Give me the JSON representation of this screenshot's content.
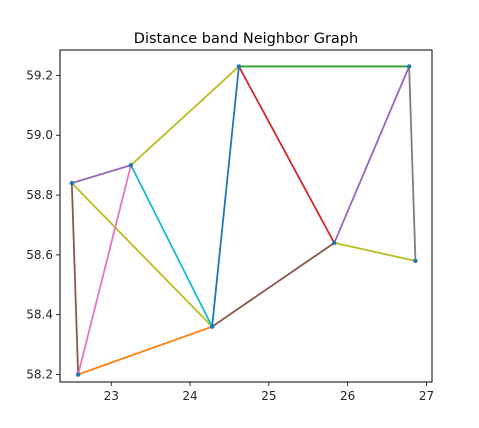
{
  "chart_data": {
    "type": "line",
    "title": "Distance band Neighbor Graph",
    "xlabel": "",
    "ylabel": "",
    "xlim": [
      22.35,
      27.07
    ],
    "ylim": [
      58.175,
      59.285
    ],
    "xticks": [
      23,
      24,
      25,
      26,
      27
    ],
    "yticks": [
      58.2,
      58.4,
      58.6,
      58.8,
      59.0,
      59.2
    ],
    "grid": false,
    "legend": "none",
    "nodes": [
      {
        "id": "A",
        "x": 22.5,
        "y": 58.84
      },
      {
        "id": "B",
        "x": 23.25,
        "y": 58.9
      },
      {
        "id": "C",
        "x": 22.58,
        "y": 58.2
      },
      {
        "id": "D",
        "x": 24.28,
        "y": 58.36
      },
      {
        "id": "E",
        "x": 24.62,
        "y": 59.23
      },
      {
        "id": "F",
        "x": 25.83,
        "y": 58.64
      },
      {
        "id": "G",
        "x": 26.78,
        "y": 59.23
      },
      {
        "id": "H",
        "x": 26.86,
        "y": 58.58
      }
    ],
    "edges": [
      {
        "from": "A",
        "to": "B",
        "color": "#9467bd"
      },
      {
        "from": "A",
        "to": "C",
        "color": "#8c564b"
      },
      {
        "from": "A",
        "to": "D",
        "color": "#bcbd22"
      },
      {
        "from": "B",
        "to": "C",
        "color": "#e377c2"
      },
      {
        "from": "B",
        "to": "D",
        "color": "#17becf"
      },
      {
        "from": "B",
        "to": "E",
        "color": "#bcbd22"
      },
      {
        "from": "C",
        "to": "D",
        "color": "#ff7f0e"
      },
      {
        "from": "D",
        "to": "E",
        "color": "#1f77b4"
      },
      {
        "from": "D",
        "to": "F",
        "color": "#8c564b"
      },
      {
        "from": "E",
        "to": "G",
        "color": "#2ca02c"
      },
      {
        "from": "E",
        "to": "F",
        "color": "#d62728"
      },
      {
        "from": "F",
        "to": "G",
        "color": "#9467bd"
      },
      {
        "from": "F",
        "to": "H",
        "color": "#bcbd22"
      },
      {
        "from": "G",
        "to": "H",
        "color": "#7f7f7f"
      }
    ],
    "node_color": "#1f77b4"
  }
}
